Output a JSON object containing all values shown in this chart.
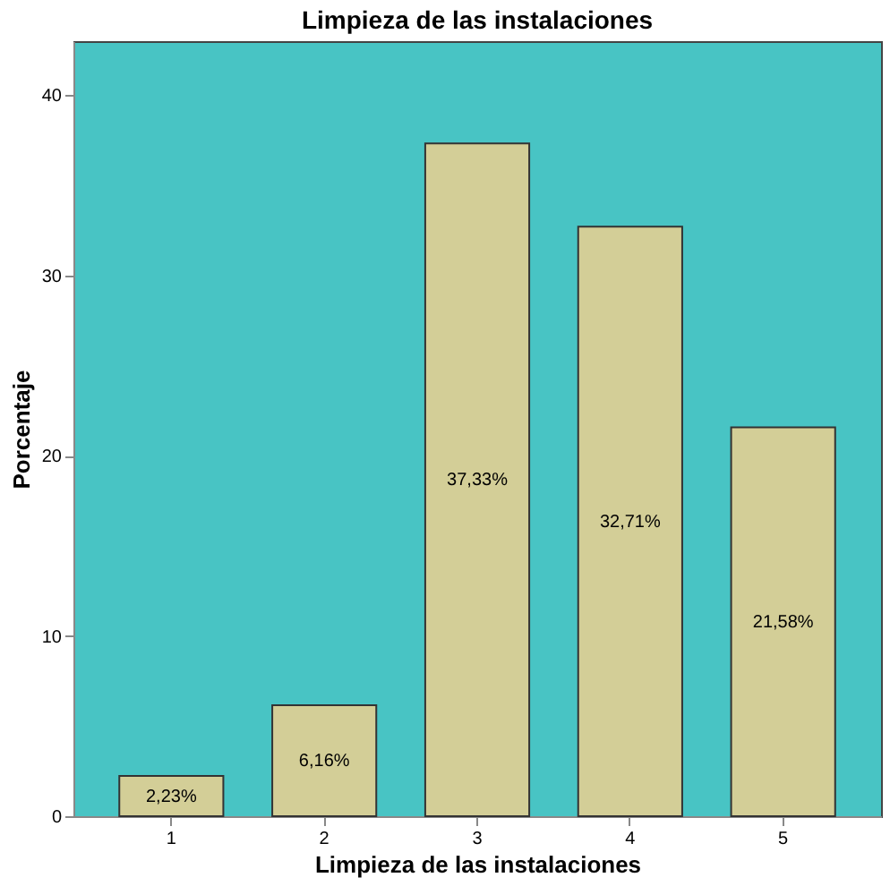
{
  "chart_data": {
    "type": "bar",
    "title": "Limpieza de las instalaciones",
    "xlabel": "Limpieza de las instalaciones",
    "ylabel": "Porcentaje",
    "categories": [
      "1",
      "2",
      "3",
      "4",
      "5"
    ],
    "values": [
      2.23,
      6.16,
      37.33,
      32.71,
      21.58
    ],
    "value_labels": [
      "2,23%",
      "6,16%",
      "37,33%",
      "32,71%",
      "21,58%"
    ],
    "color": "#d3ce97",
    "ylim": [
      0,
      43
    ],
    "yticks": [
      0,
      10,
      20,
      30,
      40
    ],
    "grid": false
  }
}
